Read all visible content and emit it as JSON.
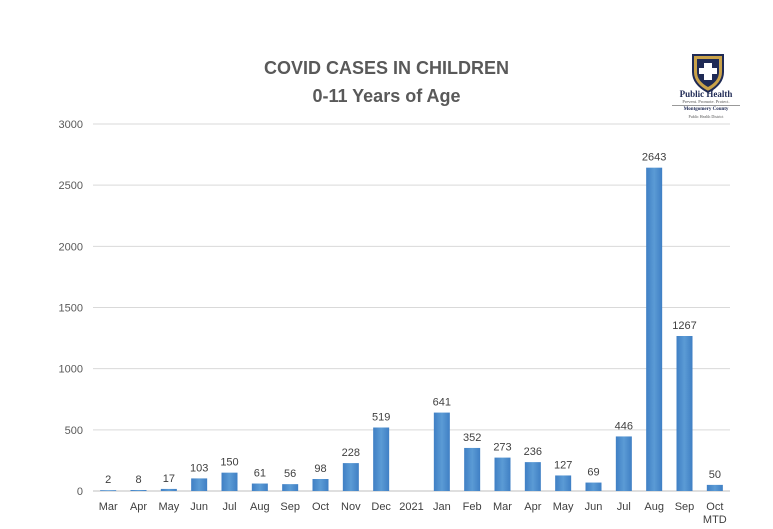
{
  "chart_data": {
    "type": "bar",
    "title": "COVID CASES IN CHILDREN",
    "subtitle": "0-11 Years of Age",
    "xlabel": "",
    "ylabel": "",
    "ylim": [
      0,
      3000
    ],
    "yticks": [
      0,
      500,
      1000,
      1500,
      2000,
      2500,
      3000
    ],
    "grid": true,
    "categories": [
      "Mar",
      "Apr",
      "May",
      "Jun",
      "Jul",
      "Aug",
      "Sep",
      "Oct",
      "Nov",
      "Dec",
      "2021",
      "Jan",
      "Feb",
      "Mar",
      "Apr",
      "May",
      "Jun",
      "Jul",
      "Aug",
      "Sep",
      "Oct MTD"
    ],
    "values": [
      2,
      8,
      17,
      103,
      150,
      61,
      56,
      98,
      228,
      519,
      null,
      641,
      352,
      273,
      236,
      127,
      69,
      446,
      2643,
      1267,
      50
    ],
    "data_labels": [
      "2",
      "8",
      "17",
      "103",
      "150",
      "61",
      "56",
      "98",
      "228",
      "519",
      "",
      "641",
      "352",
      "273",
      "236",
      "127",
      "69",
      "446",
      "2643",
      "1267",
      "50"
    ],
    "bar_color": "#5b9bd5"
  },
  "logo": {
    "name": "Public Health",
    "tagline": "Prevent. Promote. Protect.",
    "org": "Montgomery County",
    "org_sub": "Public Health District"
  }
}
